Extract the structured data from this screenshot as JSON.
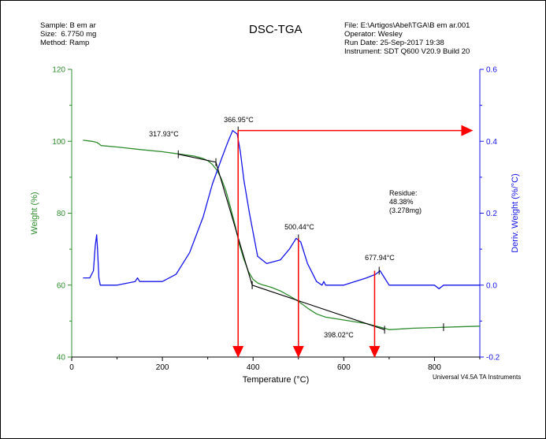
{
  "header": {
    "sample": "Sample: B em ar",
    "size": "Size:  6.7750 mg",
    "method": "Method: Ramp",
    "title": "DSC-TGA",
    "file": "File: E:\\Artigos\\Abel\\TGA\\B em ar.001",
    "operator": "Operator: Wesley",
    "run_date": "Run Date: 25-Sep-2017 19:38",
    "instrument": "Instrument: SDT Q600 V20.9 Build 20"
  },
  "footer": {
    "software": "Universal V4.5A TA Instruments"
  },
  "chart_data": {
    "type": "line",
    "title": "DSC-TGA",
    "xlabel": "Temperature (°C)",
    "ylabel_left": "Weight (%)",
    "ylabel_right": "Deriv. Weight (%/°C)",
    "xlim": [
      0,
      900
    ],
    "ylim_left": [
      40,
      120
    ],
    "ylim_right": [
      -0.2,
      0.6
    ],
    "x_ticks": [
      0,
      200,
      400,
      600,
      800
    ],
    "y_ticks_left": [
      40,
      60,
      80,
      100,
      120
    ],
    "y_ticks_right": [
      -0.2,
      0.0,
      0.2,
      0.4,
      0.6
    ],
    "colors": {
      "weight": "#2e8b2e",
      "deriv": "#1515e6",
      "tangent": "#000000",
      "arrow": "#ff0000"
    },
    "series": [
      {
        "axis": "left",
        "x": [
          25,
          45,
          55,
          60,
          65,
          100,
          150,
          200,
          240,
          270,
          290,
          300,
          310,
          320,
          330,
          340,
          350,
          360,
          370,
          380,
          390,
          400,
          410,
          420,
          440,
          460,
          480,
          500,
          520,
          540,
          560,
          600,
          650,
          690,
          700,
          750,
          800,
          850,
          900
        ],
        "y": [
          100.3,
          100.0,
          99.7,
          99.3,
          98.8,
          98.4,
          97.7,
          97.1,
          96.4,
          95.9,
          95.2,
          94.6,
          93.6,
          92.0,
          89.6,
          86.3,
          81.7,
          76.8,
          71.1,
          67.1,
          63.7,
          61.6,
          60.6,
          60.1,
          59.4,
          58.4,
          57.0,
          55.5,
          53.6,
          52.0,
          51.1,
          50.3,
          49.3,
          48.0,
          47.6,
          48.0,
          48.2,
          48.4,
          48.6
        ]
      },
      {
        "axis": "right",
        "x": [
          25,
          40,
          48,
          52,
          55,
          57,
          60,
          63,
          68,
          80,
          100,
          140,
          145,
          150,
          200,
          230,
          260,
          290,
          310,
          330,
          345,
          355,
          365,
          372,
          380,
          392,
          410,
          430,
          460,
          480,
          495,
          505,
          520,
          540,
          552,
          556,
          560,
          600,
          650,
          670,
          680,
          690,
          700,
          720,
          800,
          810,
          820,
          830,
          850,
          900
        ],
        "y": [
          0.02,
          0.02,
          0.04,
          0.11,
          0.14,
          0.1,
          0.02,
          0.0,
          0.0,
          0.0,
          0.0,
          0.01,
          0.02,
          0.01,
          0.01,
          0.03,
          0.09,
          0.19,
          0.28,
          0.35,
          0.4,
          0.43,
          0.42,
          0.37,
          0.29,
          0.2,
          0.08,
          0.06,
          0.07,
          0.1,
          0.13,
          0.12,
          0.06,
          0.01,
          0.0,
          0.01,
          0.0,
          0.0,
          0.02,
          0.03,
          0.04,
          0.02,
          0.0,
          0.0,
          0.0,
          -0.01,
          0.0,
          0.0,
          0.0,
          0.0
        ]
      }
    ],
    "annotations": [
      {
        "label": "317.93°C",
        "x": 318,
        "y": 96.0
      },
      {
        "label": "366.95°C",
        "x": 367,
        "y": 0.43
      },
      {
        "label": "500.44°C",
        "x": 500,
        "y": 0.13
      },
      {
        "label": "677.94°C",
        "x": 678,
        "y": 0.04
      },
      {
        "label": "398.02°C",
        "x": 398,
        "y": 60.0
      }
    ],
    "residue": {
      "title": "Residue:",
      "percent": "48.38%",
      "mass": "(3.278mg)"
    },
    "tangent_lines": [
      {
        "x": [
          235,
          318,
          398
        ],
        "y": [
          96.4,
          94.2,
          60.0
        ]
      },
      {
        "x": [
          398,
          690
        ],
        "y": [
          60.0,
          47.6
        ]
      }
    ],
    "arrows": [
      {
        "type": "horizontal",
        "from_x": 367,
        "to_x": 880,
        "y": 0.43
      },
      {
        "type": "vertical",
        "x": 367,
        "from_y": 0.43,
        "to_y": -0.2
      },
      {
        "type": "vertical",
        "x": 500,
        "from_y": 0.13,
        "to_y": -0.2
      },
      {
        "type": "vertical",
        "x": 668,
        "from_y": 0.04,
        "to_y": -0.2
      }
    ]
  }
}
